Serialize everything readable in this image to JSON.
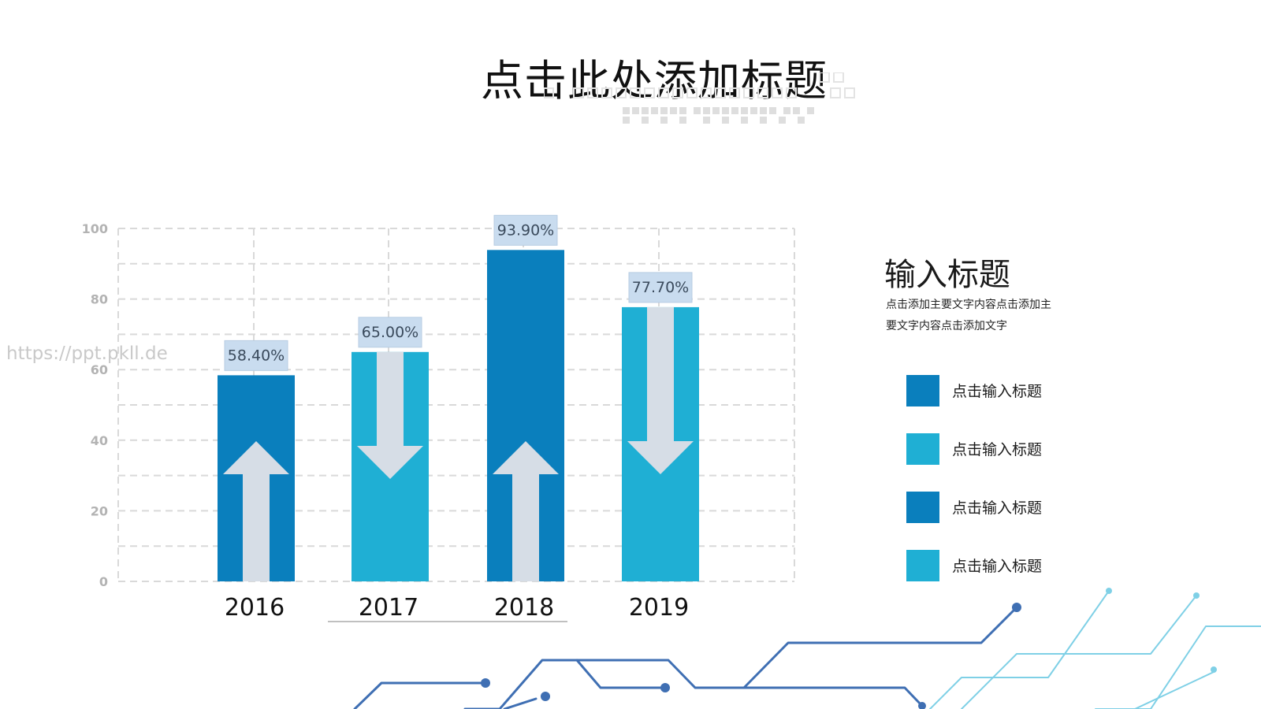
{
  "title": "点击此处添加标题",
  "watermark": "https://ppt.pkll.de",
  "side_panel": {
    "title": "输入标题",
    "description_line1": "点击添加主要文字内容点击添加主",
    "description_line2": "要文字内容点击添加文字"
  },
  "legend": [
    {
      "label": "点击输入标题",
      "color": "#0a7fbd"
    },
    {
      "label": "点击输入标题",
      "color": "#1fafd4"
    },
    {
      "label": "点击输入标题",
      "color": "#0a7fbd"
    },
    {
      "label": "点击输入标题",
      "color": "#1fafd4"
    }
  ],
  "colors": {
    "dark_blue": "#0a7fbd",
    "light_blue": "#1fafd4",
    "arrow_fill": "#d6dde6",
    "label_box": "#c9dcef",
    "grid": "#d9d9d9",
    "circuit_dark": "#3f6fb3",
    "circuit_light": "#7fd0e6"
  },
  "chart_data": {
    "type": "bar",
    "categories": [
      "2016",
      "2017",
      "2018",
      "2019"
    ],
    "values": [
      58.4,
      65.0,
      93.9,
      77.7
    ],
    "data_labels": [
      "58.40%",
      "65.00%",
      "93.90%",
      "77.70%"
    ],
    "arrow_directions": [
      "up",
      "down",
      "up",
      "down"
    ],
    "bar_colors": [
      "#0a7fbd",
      "#1fafd4",
      "#0a7fbd",
      "#1fafd4"
    ],
    "y_ticks": [
      "0",
      "20",
      "40",
      "60",
      "80",
      "100"
    ],
    "ylim": [
      0,
      100
    ],
    "grid": true,
    "title": "",
    "xlabel": "",
    "ylabel": ""
  }
}
